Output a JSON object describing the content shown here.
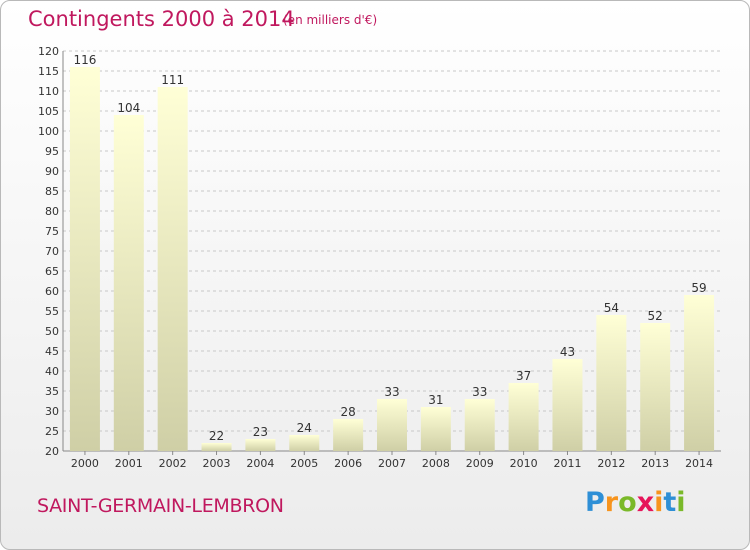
{
  "title": "Contingents 2000 à 2014",
  "unit": "(en milliers d'€)",
  "commune": "SAINT-GERMAIN-LEMBRON",
  "brand": {
    "letters": [
      "P",
      "r",
      "o",
      "x",
      "i",
      "t",
      "i"
    ],
    "colors": [
      "#2e8fd6",
      "#f7941d",
      "#7ab929",
      "#e6155a",
      "#f7941d",
      "#2e8fd6",
      "#7ab929"
    ]
  },
  "colors": {
    "title": "#c0185e",
    "bar_top": "#ffffd6",
    "bar_bottom": "#cfcfa6",
    "grid": "#c8c8c8"
  },
  "chart_data": {
    "type": "bar",
    "categories": [
      "2000",
      "2001",
      "2002",
      "2003",
      "2004",
      "2005",
      "2006",
      "2007",
      "2008",
      "2009",
      "2010",
      "2011",
      "2012",
      "2013",
      "2014"
    ],
    "values": [
      116,
      104,
      111,
      22,
      23,
      24,
      28,
      33,
      31,
      33,
      37,
      43,
      54,
      52,
      59
    ],
    "ylim": [
      20,
      120
    ],
    "yticks": [
      20,
      25,
      30,
      35,
      40,
      45,
      50,
      55,
      60,
      65,
      70,
      75,
      80,
      85,
      90,
      95,
      100,
      105,
      110,
      115,
      120
    ],
    "grid": "horizontal dashed",
    "data_labels": true
  }
}
